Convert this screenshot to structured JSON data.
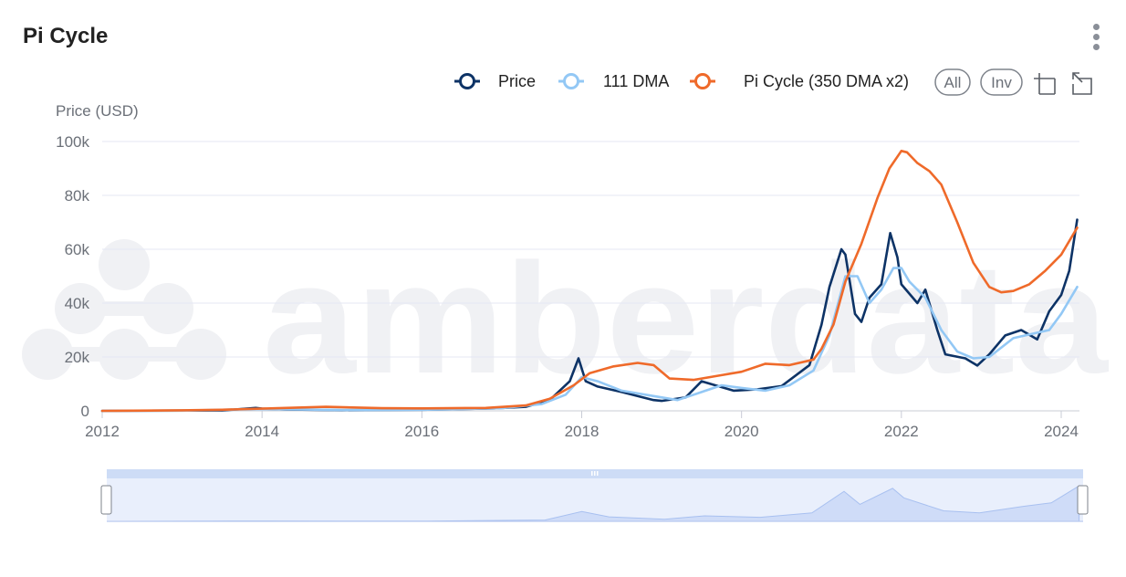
{
  "header": {
    "title": "Pi Cycle",
    "menu_icon": "kebab-menu-icon"
  },
  "toolbar": {
    "all_label": "All",
    "inv_label": "Inv",
    "zoom_icon": "crop-zoom-icon",
    "reset_icon": "reset-zoom-icon"
  },
  "watermark": "amberdata",
  "colors": {
    "price": "#0d3366",
    "dma111": "#93c8f5",
    "pi": "#ef6a2a",
    "grid": "#e4e7f3",
    "navigator": "#dde8fb"
  },
  "chart_data": {
    "type": "line",
    "title": "",
    "xlabel": "",
    "ylabel": "Price (USD)",
    "xlim": [
      2012.0,
      2024.25
    ],
    "ylim": [
      0,
      100000
    ],
    "x_ticks": [
      2012,
      2014,
      2016,
      2018,
      2020,
      2022,
      2024
    ],
    "x_tick_labels": [
      "2012",
      "2014",
      "2016",
      "2018",
      "2020",
      "2022",
      "2024"
    ],
    "y_ticks": [
      0,
      20000,
      40000,
      60000,
      80000,
      100000
    ],
    "y_tick_labels": [
      "0",
      "20k",
      "40k",
      "60k",
      "80k",
      "100k"
    ],
    "grid": true,
    "legend_position": "top-right",
    "series": [
      {
        "name": "Price",
        "color": "#0d3366",
        "x": [
          2012.0,
          2013.0,
          2013.5,
          2013.92,
          2014.0,
          2014.3,
          2015.0,
          2016.0,
          2016.9,
          2017.3,
          2017.6,
          2017.85,
          2017.96,
          2018.05,
          2018.2,
          2018.5,
          2018.9,
          2019.0,
          2019.3,
          2019.5,
          2019.9,
          2020.2,
          2020.5,
          2020.85,
          2021.0,
          2021.1,
          2021.25,
          2021.3,
          2021.42,
          2021.5,
          2021.6,
          2021.75,
          2021.86,
          2021.95,
          2022.0,
          2022.2,
          2022.3,
          2022.45,
          2022.55,
          2022.8,
          2022.95,
          2023.1,
          2023.3,
          2023.5,
          2023.7,
          2023.85,
          2024.0,
          2024.1,
          2024.2
        ],
        "y": [
          5,
          100,
          150,
          1100,
          800,
          500,
          250,
          400,
          900,
          1500,
          4000,
          11000,
          19500,
          11000,
          9000,
          7000,
          4000,
          3700,
          5000,
          11000,
          7500,
          8000,
          9200,
          17000,
          32000,
          46000,
          60000,
          58000,
          36000,
          33000,
          42000,
          47000,
          66000,
          57000,
          47000,
          40000,
          45000,
          30000,
          21000,
          19500,
          16800,
          21000,
          28000,
          30000,
          26500,
          37000,
          43000,
          52000,
          71000
        ]
      },
      {
        "name": "111 DMA",
        "color": "#93c8f5",
        "x": [
          2012.0,
          2013.0,
          2014.0,
          2015.0,
          2016.0,
          2017.0,
          2017.5,
          2017.8,
          2018.0,
          2018.2,
          2018.5,
          2018.9,
          2019.2,
          2019.5,
          2019.75,
          2020.0,
          2020.3,
          2020.6,
          2020.9,
          2021.1,
          2021.3,
          2021.45,
          2021.6,
          2021.75,
          2021.9,
          2022.0,
          2022.1,
          2022.3,
          2022.5,
          2022.7,
          2022.9,
          2023.1,
          2023.4,
          2023.7,
          2023.85,
          2024.0,
          2024.2
        ],
        "y": [
          5,
          80,
          700,
          300,
          400,
          1000,
          2500,
          6000,
          12500,
          11000,
          7500,
          5500,
          4000,
          7000,
          9500,
          8500,
          7500,
          9500,
          15000,
          28000,
          50000,
          50000,
          40000,
          45000,
          53000,
          53000,
          48000,
          42000,
          30000,
          22000,
          19500,
          20000,
          27000,
          29000,
          30000,
          36000,
          46000
        ]
      },
      {
        "name": "Pi Cycle (350 DMA x2)",
        "color": "#ef6a2a",
        "x": [
          2012.0,
          2013.0,
          2013.5,
          2014.2,
          2014.8,
          2015.5,
          2016.0,
          2016.8,
          2017.3,
          2017.6,
          2017.9,
          2018.1,
          2018.4,
          2018.7,
          2018.9,
          2019.1,
          2019.4,
          2019.7,
          2020.0,
          2020.3,
          2020.6,
          2020.9,
          2021.0,
          2021.15,
          2021.3,
          2021.5,
          2021.7,
          2021.85,
          2022.0,
          2022.07,
          2022.2,
          2022.35,
          2022.5,
          2022.7,
          2022.9,
          2023.1,
          2023.25,
          2023.4,
          2023.6,
          2023.8,
          2024.0,
          2024.2
        ],
        "y": [
          5,
          200,
          400,
          1000,
          1500,
          1000,
          900,
          1100,
          2000,
          4500,
          9500,
          14000,
          16500,
          17800,
          17000,
          12000,
          11500,
          13000,
          14500,
          17500,
          17000,
          19000,
          23000,
          32000,
          48000,
          62000,
          79000,
          90000,
          96500,
          96000,
          92000,
          89000,
          84000,
          70000,
          55000,
          46000,
          44000,
          44500,
          47000,
          52000,
          58000,
          68000
        ]
      }
    ],
    "navigator": {
      "x": [
        2012.0,
        2014.0,
        2016.0,
        2017.5,
        2017.96,
        2018.3,
        2019.0,
        2019.5,
        2020.2,
        2020.85,
        2021.25,
        2021.45,
        2021.86,
        2022.0,
        2022.5,
        2022.95,
        2023.5,
        2023.85,
        2024.2
      ],
      "y": [
        5,
        800,
        400,
        2500,
        19500,
        9000,
        4000,
        11000,
        8000,
        17000,
        60000,
        34000,
        66000,
        47000,
        21000,
        16800,
        30000,
        37000,
        71000
      ]
    }
  }
}
